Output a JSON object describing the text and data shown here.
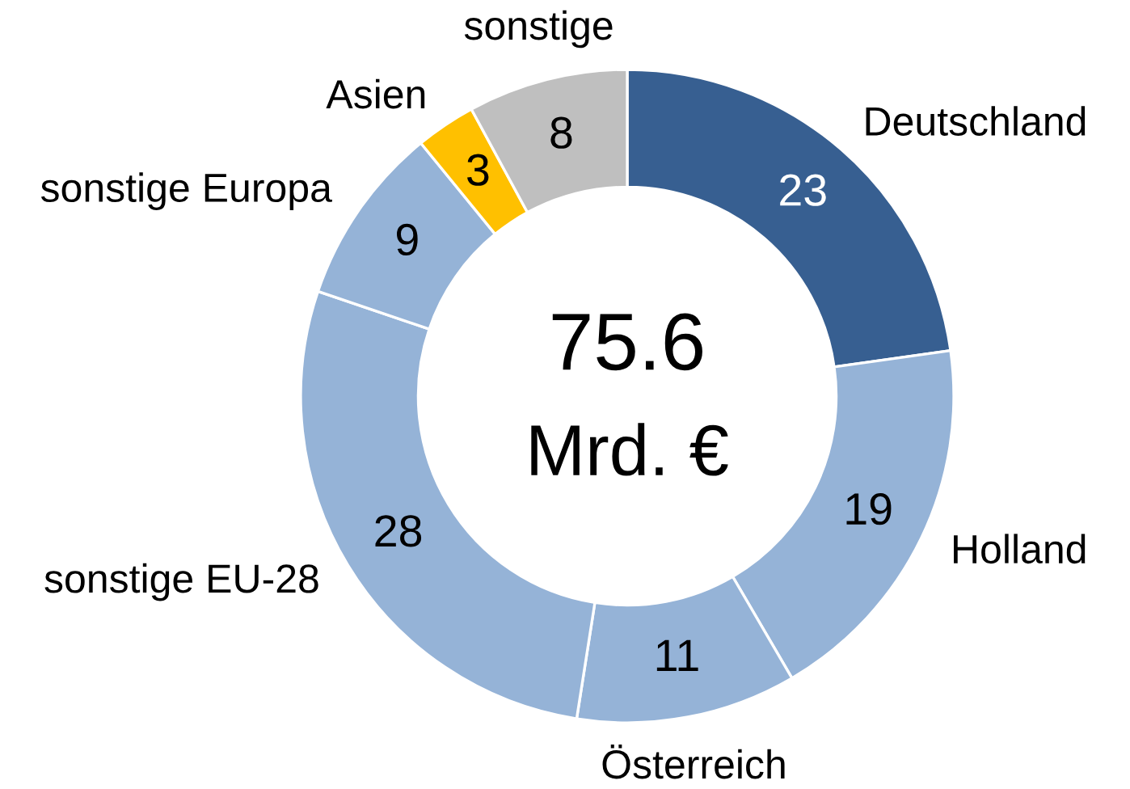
{
  "chart_data": {
    "type": "donut",
    "categories": [
      "Deutschland",
      "Holland",
      "Österreich",
      "sonstige EU-28",
      "sonstige Europa",
      "Asien",
      "sonstige"
    ],
    "values": [
      23,
      19,
      11,
      28,
      9,
      3,
      8
    ],
    "colors": [
      "#375f91",
      "#95b3d7",
      "#95b3d7",
      "#95b3d7",
      "#95b3d7",
      "#ffc000",
      "#bfbfbf"
    ],
    "data_labels": true,
    "annotations": [
      "75.6",
      "Mrd. €"
    ]
  }
}
